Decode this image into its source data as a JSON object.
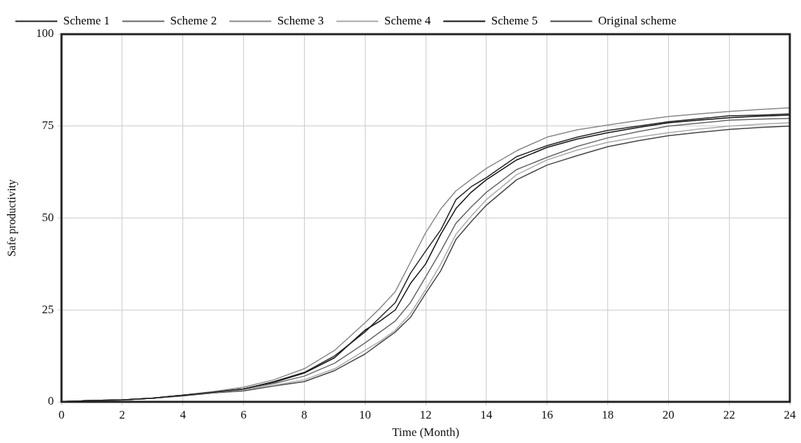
{
  "chart_data": {
    "type": "line",
    "xlabel": "Time (Month)",
    "ylabel": "Safe productivity",
    "x": [
      0,
      1,
      2,
      3,
      4,
      5,
      6,
      7,
      8,
      9,
      10,
      10.5,
      11,
      11.5,
      12,
      12.5,
      13,
      13.5,
      14,
      15,
      16,
      17,
      18,
      19,
      20,
      21,
      22,
      23,
      24
    ],
    "series": [
      {
        "name": "Scheme 1",
        "color": "#222222",
        "values": [
          0,
          0.4,
          0.5,
          1,
          1.8,
          2.6,
          3.5,
          5.5,
          8,
          12.5,
          19,
          23,
          27,
          35,
          41,
          46.8,
          55,
          58.5,
          61,
          66.7,
          69.7,
          72,
          73.8,
          75,
          76.2,
          77,
          77.8,
          78,
          78.3
        ]
      },
      {
        "name": "Scheme 2",
        "color": "#666666",
        "values": [
          0,
          0.4,
          0.5,
          1,
          1.8,
          2.6,
          3.5,
          5,
          7,
          10.5,
          16,
          19,
          22,
          27,
          34,
          41,
          48.6,
          53,
          57,
          63.2,
          66.5,
          69.5,
          71.8,
          73.5,
          75,
          75.8,
          76.6,
          76.9,
          77.1
        ]
      },
      {
        "name": "Scheme 3",
        "color": "#888888",
        "values": [
          0,
          0.4,
          0.5,
          1,
          1.8,
          2.8,
          4,
          6,
          9,
          14,
          21.5,
          25.5,
          30,
          38,
          46,
          52.5,
          57.4,
          60.5,
          63.5,
          68.3,
          72,
          74,
          75.3,
          76.5,
          77.6,
          78.3,
          79,
          79.5,
          80
        ]
      },
      {
        "name": "Scheme 4",
        "color": "#aaaaaa",
        "values": [
          0,
          0.4,
          0.5,
          1,
          1.8,
          2.5,
          3.3,
          4.5,
          6,
          9,
          14,
          16.5,
          19.5,
          24,
          30.5,
          37.5,
          45.6,
          50.5,
          55,
          61.8,
          65.8,
          68.5,
          70.6,
          72,
          73.2,
          74.2,
          75,
          75.5,
          75.9
        ]
      },
      {
        "name": "Scheme 5",
        "color": "#111111",
        "values": [
          0,
          0.4,
          0.5,
          1,
          1.8,
          2.6,
          3.5,
          5.3,
          7.8,
          12,
          19.5,
          22,
          25,
          32.2,
          37.5,
          45.6,
          52.6,
          57,
          60.4,
          65.8,
          69.2,
          71.5,
          73.2,
          74.6,
          75.9,
          76.6,
          77.3,
          77.7,
          78
        ]
      },
      {
        "name": "Original scheme",
        "color": "#444444",
        "values": [
          0,
          0.4,
          0.5,
          1,
          1.6,
          2.4,
          3,
          4.3,
          5.5,
          8.5,
          13,
          16,
          19,
          23,
          29.5,
          35.7,
          44.2,
          49,
          53.5,
          60.4,
          64.4,
          67,
          69.4,
          71,
          72.4,
          73.3,
          74.1,
          74.6,
          75
        ]
      }
    ],
    "xlim": [
      0,
      24
    ],
    "xticks": [
      0,
      2,
      4,
      6,
      8,
      10,
      12,
      14,
      16,
      18,
      20,
      22,
      24
    ],
    "ylim": [
      0,
      100
    ],
    "yticks": [
      0,
      25,
      50,
      75,
      100
    ],
    "grid": true,
    "legend": "top left",
    "marker": "none",
    "line_style": "solid"
  }
}
